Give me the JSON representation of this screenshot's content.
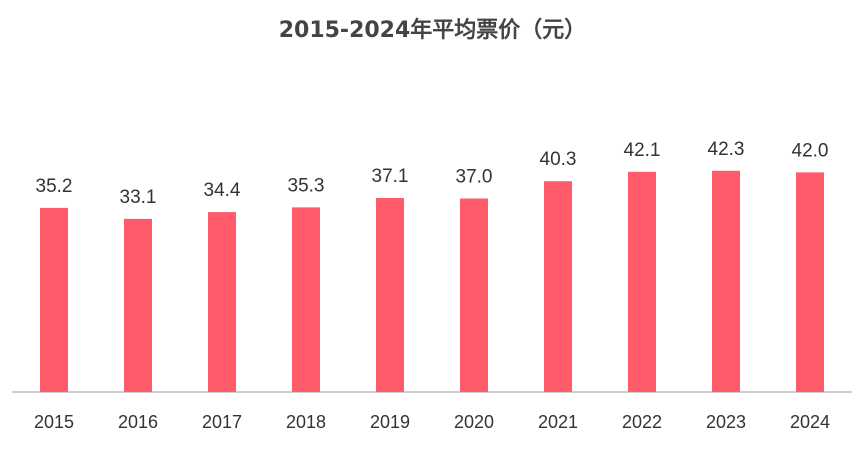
{
  "chart_data": {
    "type": "bar",
    "title": "2015-2024年平均票价（元）",
    "xlabel": "",
    "ylabel": "",
    "categories": [
      "2015",
      "2016",
      "2017",
      "2018",
      "2019",
      "2020",
      "2021",
      "2022",
      "2023",
      "2024"
    ],
    "series": [
      {
        "values": [
          35.2,
          33.1,
          34.4,
          35.3,
          37.1,
          37.0,
          40.3,
          42.1,
          42.3,
          42.0
        ],
        "color": "#FF5B6B"
      }
    ],
    "data_labels": [
      "35.2",
      "33.1",
      "34.4",
      "35.3",
      "37.1",
      "37.0",
      "40.3",
      "42.1",
      "42.3",
      "42.0"
    ],
    "ylim": [
      0,
      50
    ],
    "grid": false,
    "legend": "none",
    "axis_color": "#BFBFBF"
  }
}
